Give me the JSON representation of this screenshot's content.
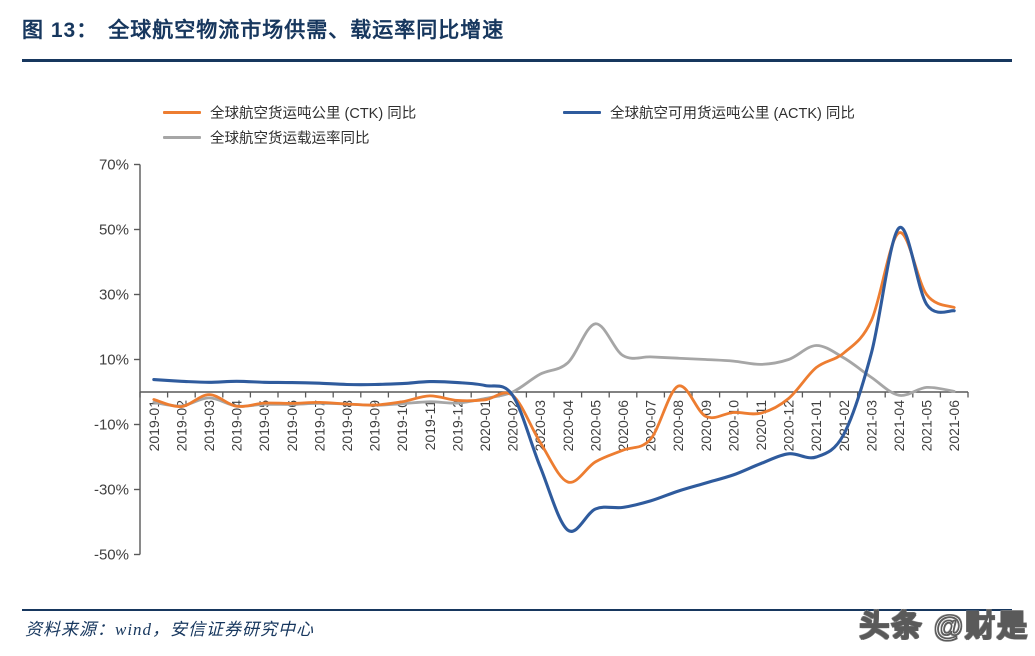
{
  "figure": {
    "label": "图 13：",
    "title": "全球航空物流市场供需、载运率同比增速"
  },
  "source": {
    "text": "资料来源：wind，安信证券研究中心"
  },
  "watermark": {
    "text": "头条 @财是"
  },
  "colors": {
    "title": "#17375E",
    "rule": "#17375E",
    "source_text": "#17375E",
    "axis_line": "#595959",
    "tick_label": "#404040",
    "watermark_fill": "#ffffff",
    "watermark_outline": "#5a5a5a"
  },
  "chart_data": {
    "type": "line",
    "title": "",
    "xlabel": "",
    "ylabel": "",
    "grid": false,
    "legend_position": "top",
    "ylim": [
      -50,
      70
    ],
    "y_ticks": [
      70,
      50,
      30,
      10,
      -10,
      -30,
      -50
    ],
    "y_tick_suffix": "%",
    "categories": [
      "2019-01",
      "2019-02",
      "2019-03",
      "2019-04",
      "2019-05",
      "2019-06",
      "2019-07",
      "2019-08",
      "2019-09",
      "2019-10",
      "2019-11",
      "2019-12",
      "2020-01",
      "2020-02",
      "2020-03",
      "2020-04",
      "2020-05",
      "2020-06",
      "2020-07",
      "2020-08",
      "2020-09",
      "2020-10",
      "2020-11",
      "2020-12",
      "2021-01",
      "2021-02",
      "2021-03",
      "2021-04",
      "2021-05",
      "2021-06"
    ],
    "series": [
      {
        "name": "全球航空货运吨公里 (CTK) 同比",
        "color": "#ED7D31",
        "line_width": 2.8,
        "values": [
          -2.3,
          -4.5,
          -0.8,
          -4.4,
          -3.4,
          -3.5,
          -3.2,
          -3.7,
          -4.0,
          -3.0,
          -1.2,
          -2.6,
          -2.4,
          -1.0,
          -15.5,
          -27.7,
          -21.5,
          -17.9,
          -14.5,
          1.8,
          -7.5,
          -6.3,
          -6.5,
          -2.0,
          7.5,
          12.0,
          22.0,
          49.0,
          30.0,
          26.0
        ]
      },
      {
        "name": "全球航空可用货运吨公里 (ACTK) 同比",
        "color": "#2F5B9D",
        "line_width": 3.1,
        "values": [
          3.8,
          3.3,
          3.0,
          3.3,
          3.0,
          2.9,
          2.7,
          2.3,
          2.3,
          2.6,
          3.2,
          2.9,
          2.0,
          -1.0,
          -23.0,
          -42.5,
          -36.0,
          -35.5,
          -33.5,
          -30.5,
          -28.0,
          -25.5,
          -22.0,
          -19.0,
          -20.0,
          -13.0,
          12.0,
          50.5,
          27.0,
          25.0
        ]
      },
      {
        "name": "全球航空货运载运率同比",
        "color": "#A6A6A6",
        "line_width": 2.8,
        "values": [
          -3.2,
          -4.3,
          -1.8,
          -4.3,
          -3.8,
          -3.8,
          -3.5,
          -3.7,
          -4.1,
          -3.6,
          -3.0,
          -3.4,
          -2.0,
          0.0,
          5.5,
          9.0,
          21.0,
          11.2,
          10.8,
          10.4,
          10.0,
          9.5,
          8.5,
          10.0,
          14.3,
          10.5,
          4.5,
          -1.0,
          1.4,
          0.2
        ]
      }
    ]
  }
}
